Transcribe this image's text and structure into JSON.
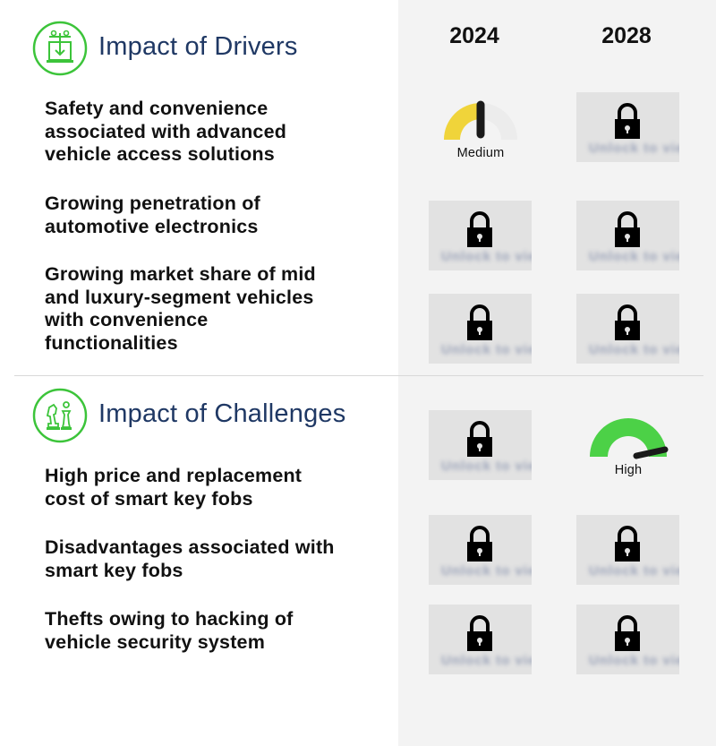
{
  "years": [
    "2024",
    "2028"
  ],
  "drivers": {
    "title": "Impact of Drivers",
    "items": [
      {
        "text_lines": [
          "Safety and convenience",
          "associated with advanced",
          "vehicle access solutions"
        ]
      },
      {
        "text_lines": [
          "Growing penetration of",
          "automotive electronics"
        ]
      },
      {
        "text_lines": [
          "Growing market share of mid",
          "and luxury-segment vehicles",
          "with convenience",
          "functionalities"
        ]
      }
    ]
  },
  "challenges": {
    "title": "Impact of Challenges",
    "items": [
      {
        "text_lines": [
          "High price and replacement",
          "cost of smart key fobs"
        ]
      },
      {
        "text_lines": [
          "Disadvantages associated with",
          "smart key fobs"
        ]
      },
      {
        "text_lines": [
          "Thefts owing to hacking of",
          "vehicle security system"
        ]
      }
    ]
  },
  "gauges": {
    "medium": {
      "label": "Medium",
      "level": 0.5,
      "color": "#f0d43a"
    },
    "high": {
      "label": "High",
      "level": 1.0,
      "color": "#4cd147"
    }
  },
  "locked_blur_text": "Unlock to view",
  "colors": {
    "title": "#1f3864",
    "icon_green": "#3cc43a",
    "panel_bg": "#f3f3f3",
    "tile_bg": "#e2e2e2"
  }
}
